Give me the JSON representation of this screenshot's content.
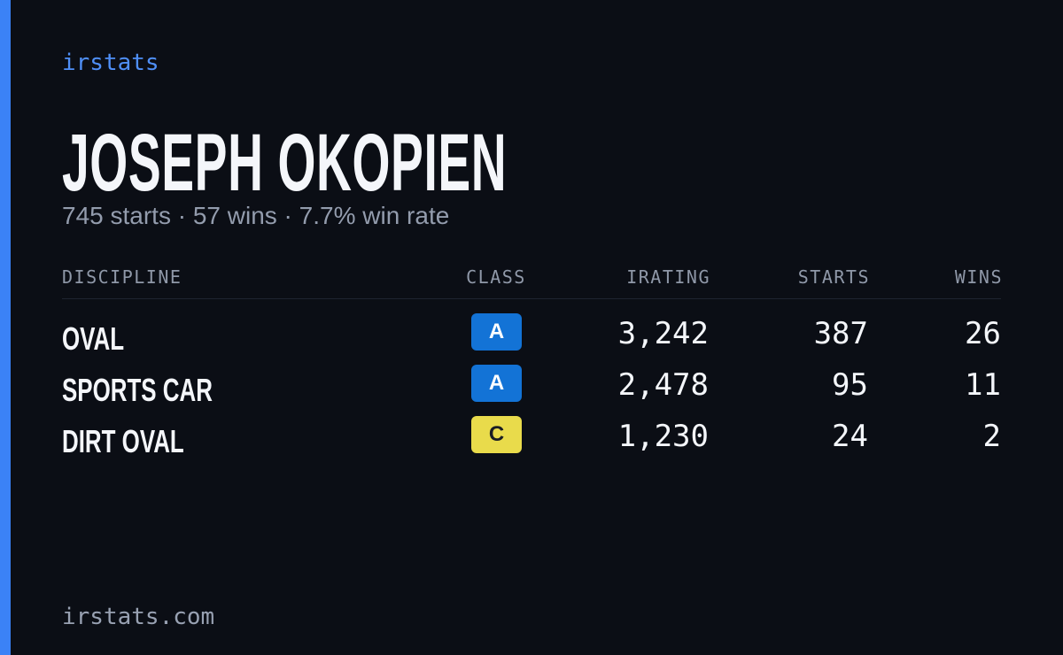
{
  "brand": "irstats",
  "player": {
    "name": "JOSEPH OKOPIEN",
    "summary": "745 starts · 57 wins · 7.7% win rate"
  },
  "table": {
    "headers": [
      "DISCIPLINE",
      "CLASS",
      "IRATING",
      "STARTS",
      "WINS"
    ],
    "rows": [
      [
        "OVAL",
        "A",
        "3,242",
        "387",
        "26"
      ],
      [
        "SPORTS CAR",
        "A",
        "2,478",
        "95",
        "11"
      ],
      [
        "DIRT OVAL",
        "C",
        "1,230",
        "24",
        "2"
      ]
    ]
  },
  "footer": "irstats.com"
}
